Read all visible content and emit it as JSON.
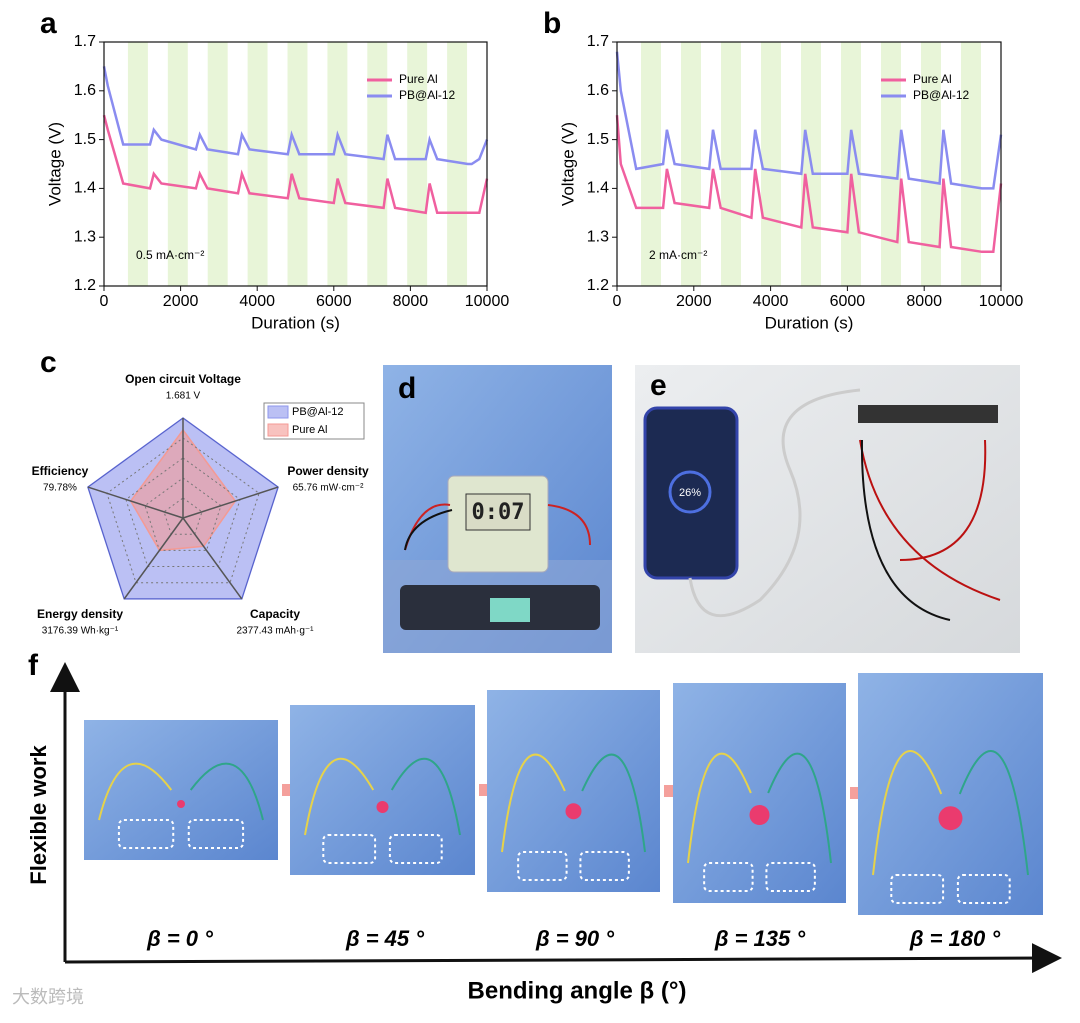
{
  "chart_data": [
    {
      "type": "line",
      "panel_label": "a",
      "xlabel": "Duration (s)",
      "ylabel": "Voltage (V)",
      "annotation": "0.5 mA·cm⁻²",
      "xlim": [
        0,
        10000
      ],
      "xticks": [
        0,
        2000,
        4000,
        6000,
        8000,
        10000
      ],
      "ylim": [
        1.2,
        1.7
      ],
      "yticks": [
        1.2,
        1.3,
        1.4,
        1.5,
        1.6,
        1.7
      ],
      "legend": "upper right",
      "x": [
        0,
        100,
        500,
        1200,
        1300,
        1500,
        2400,
        2500,
        2700,
        3500,
        3600,
        3800,
        4800,
        4900,
        5100,
        6000,
        6100,
        6300,
        7300,
        7400,
        7600,
        8400,
        8500,
        8700,
        9500,
        9600,
        9800,
        10000
      ],
      "series": [
        {
          "name": "Pure Al",
          "color": "#f0609f",
          "values": [
            1.55,
            1.52,
            1.41,
            1.4,
            1.43,
            1.41,
            1.4,
            1.43,
            1.4,
            1.39,
            1.43,
            1.39,
            1.38,
            1.43,
            1.38,
            1.37,
            1.42,
            1.37,
            1.36,
            1.42,
            1.36,
            1.35,
            1.41,
            1.35,
            1.35,
            1.35,
            1.35,
            1.42
          ]
        },
        {
          "name": "PB@Al-12",
          "color": "#8a8cf0",
          "values": [
            1.65,
            1.61,
            1.49,
            1.49,
            1.52,
            1.5,
            1.48,
            1.51,
            1.48,
            1.47,
            1.51,
            1.48,
            1.47,
            1.51,
            1.47,
            1.47,
            1.51,
            1.47,
            1.46,
            1.51,
            1.46,
            1.46,
            1.5,
            1.46,
            1.45,
            1.45,
            1.46,
            1.5
          ]
        }
      ]
    },
    {
      "type": "line",
      "panel_label": "b",
      "xlabel": "Duration (s)",
      "ylabel": "Voltage (V)",
      "annotation": "2 mA·cm⁻²",
      "xlim": [
        0,
        10000
      ],
      "xticks": [
        0,
        2000,
        4000,
        6000,
        8000,
        10000
      ],
      "ylim": [
        1.2,
        1.7
      ],
      "yticks": [
        1.2,
        1.3,
        1.4,
        1.5,
        1.6,
        1.7
      ],
      "legend": "upper right",
      "x": [
        0,
        100,
        500,
        1200,
        1300,
        1500,
        2400,
        2500,
        2700,
        3500,
        3600,
        3800,
        4800,
        4900,
        5100,
        6000,
        6100,
        6300,
        7300,
        7400,
        7600,
        8400,
        8500,
        8700,
        9500,
        9600,
        9800,
        10000
      ],
      "series": [
        {
          "name": "Pure Al",
          "color": "#f0609f",
          "values": [
            1.55,
            1.45,
            1.36,
            1.36,
            1.44,
            1.37,
            1.36,
            1.44,
            1.36,
            1.34,
            1.44,
            1.34,
            1.32,
            1.43,
            1.32,
            1.31,
            1.43,
            1.31,
            1.29,
            1.42,
            1.29,
            1.28,
            1.42,
            1.28,
            1.27,
            1.27,
            1.27,
            1.41
          ]
        },
        {
          "name": "PB@Al-12",
          "color": "#8a8cf0",
          "values": [
            1.68,
            1.6,
            1.44,
            1.45,
            1.52,
            1.45,
            1.44,
            1.52,
            1.44,
            1.44,
            1.52,
            1.44,
            1.43,
            1.52,
            1.43,
            1.43,
            1.52,
            1.43,
            1.42,
            1.52,
            1.42,
            1.41,
            1.52,
            1.41,
            1.4,
            1.4,
            1.4,
            1.51
          ]
        }
      ]
    },
    {
      "type": "radar",
      "panel_label": "c",
      "rlim": [
        0,
        1
      ],
      "legend": "upper right",
      "axes": [
        {
          "name": "Open circuit Voltage",
          "value_label": "1.681 V"
        },
        {
          "name": "Power density",
          "value_label": "65.76 mW·cm⁻²"
        },
        {
          "name": "Capacity",
          "value_label": "2377.43 mAh·g⁻¹"
        },
        {
          "name": "Energy density",
          "value_label": "3176.39 Wh·kg⁻¹"
        },
        {
          "name": "Efficiency",
          "value_label": "79.78%"
        }
      ],
      "series": [
        {
          "name": "PB@Al-12",
          "color": "#8e96ec",
          "values": [
            1,
            1,
            1,
            1,
            1
          ]
        },
        {
          "name": "Pure Al",
          "color": "#f49a94",
          "values": [
            0.88,
            0.55,
            0.35,
            0.4,
            0.55
          ]
        }
      ]
    }
  ],
  "figure": {
    "panel_d": {
      "label": "d",
      "clock": "0:07"
    },
    "panel_e": {
      "label": "e",
      "phone": "26%"
    },
    "panel_f": {
      "label": "f",
      "ylabel": "Flexible work",
      "xlabel": "Bending angle β (°)",
      "states": [
        "β = 0 °",
        "β = 45 °",
        "β = 90 °",
        "β = 135 °",
        "β = 180 °"
      ]
    },
    "watermark": "大数跨境"
  }
}
